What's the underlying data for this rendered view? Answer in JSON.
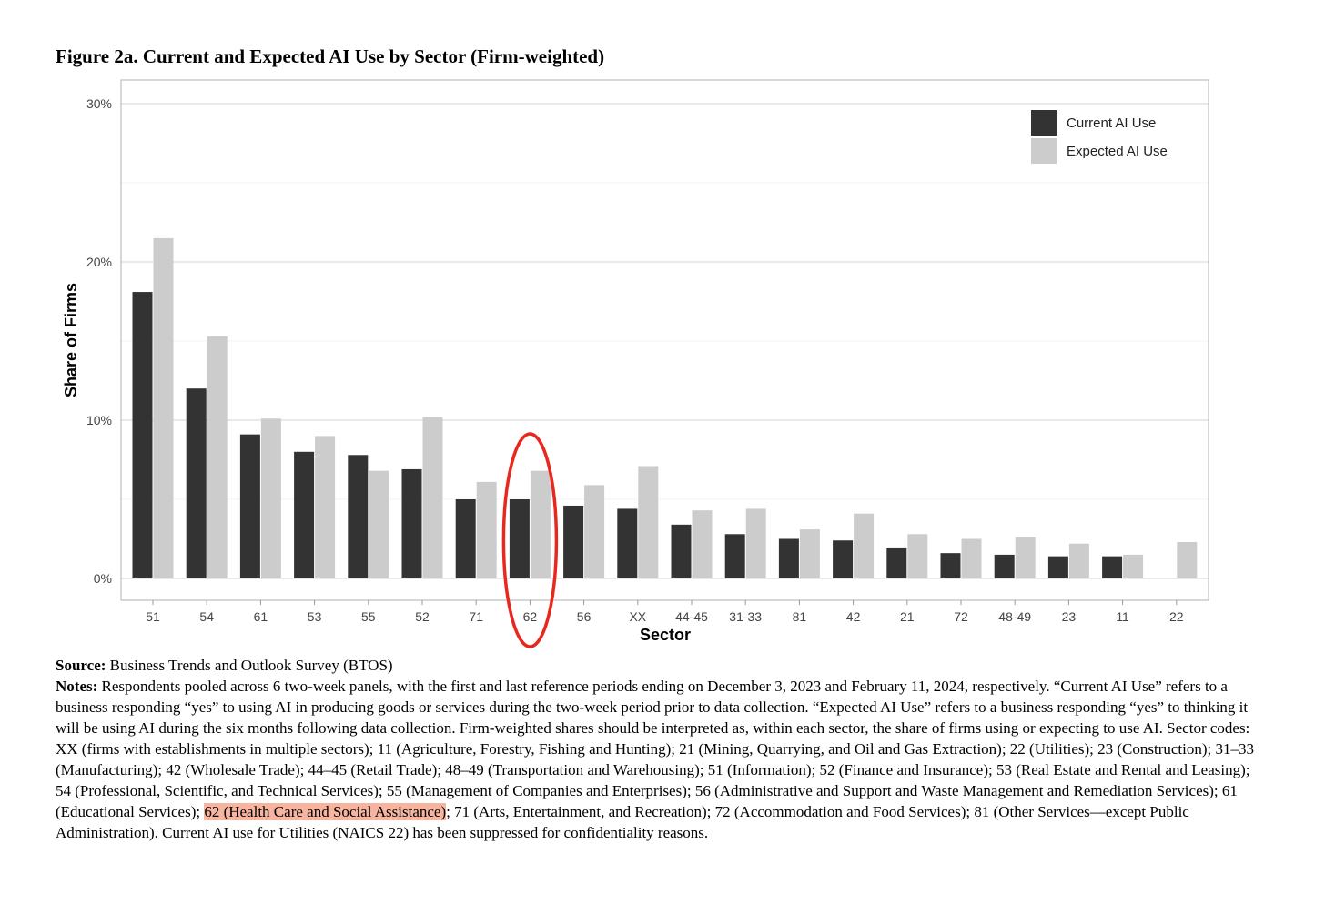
{
  "figure_title": "Figure 2a. Current and Expected AI Use by Sector (Firm-weighted)",
  "chart_data": {
    "type": "bar",
    "title": "Figure 2a. Current and Expected AI Use by Sector (Firm-weighted)",
    "xlabel": "Sector",
    "ylabel": "Share of Firms",
    "ylim": [
      0,
      30
    ],
    "yticks": [
      0,
      10,
      20,
      30
    ],
    "ytick_labels": [
      "0%",
      "10%",
      "20%",
      "30%"
    ],
    "grid": true,
    "legend_position": "top-right",
    "categories": [
      "51",
      "54",
      "61",
      "53",
      "55",
      "52",
      "71",
      "62",
      "56",
      "XX",
      "44-45",
      "31-33",
      "81",
      "42",
      "21",
      "72",
      "48-49",
      "23",
      "11",
      "22"
    ],
    "series": [
      {
        "name": "Current AI Use",
        "color": "#333333",
        "values": [
          18.1,
          12.0,
          9.1,
          8.0,
          7.8,
          6.9,
          5.0,
          5.0,
          4.6,
          4.4,
          3.4,
          2.8,
          2.5,
          2.4,
          1.9,
          1.6,
          1.5,
          1.4,
          1.4,
          null
        ]
      },
      {
        "name": "Expected AI Use",
        "color": "#cccccc",
        "values": [
          21.5,
          15.3,
          10.1,
          9.0,
          6.8,
          10.2,
          6.1,
          6.8,
          5.9,
          7.1,
          4.3,
          4.4,
          3.1,
          4.1,
          2.8,
          2.5,
          2.6,
          2.2,
          1.5,
          2.3
        ]
      }
    ],
    "annotations": [
      {
        "type": "ellipse",
        "color": "#e8281e",
        "category": "62"
      }
    ]
  },
  "notes": {
    "source_label": "Source:",
    "source_text": " Business Trends and Outlook Survey (BTOS)",
    "notes_label": "Notes:",
    "notes_text_1": " Respondents pooled across 6 two-week panels, with the first and last reference periods ending on December 3, 2023 and February 11, 2024, respectively. “Current AI Use” refers to a business responding “yes” to using AI in producing goods or services during the two-week period prior to data collection. “Expected AI Use” refers to a business responding “yes” to thinking it will be using AI during the six months following data collection. Firm-weighted shares should be interpreted as, within each sector, the share of firms using or expecting to use AI. Sector codes: XX (firms with establishments in multiple sectors); 11 (Agriculture, Forestry, Fishing and Hunting); 21 (Mining, Quarrying, and Oil and Gas Extraction); 22 (Utilities); 23 (Construction); 31–33 (Manufacturing); 42 (Wholesale Trade); 44–45 (Retail Trade); 48–49 (Transportation and Warehousing); 51 (Information); 52 (Finance and Insurance); 53 (Real Estate and Rental and Leasing); 54 (Professional, Scientific, and Technical Services); 55 (Management of Companies and Enterprises); 56 (Administrative and Support and Waste Management and Remediation Services); 61 (Educational Services); ",
    "highlight_text": "62 (Health Care and Social Assistance)",
    "notes_text_2": ";  71 (Arts, Entertainment, and Recreation); 72 (Accommodation and Food Services); 81 (Other Services—except Public Administration). Current AI use for Utilities (NAICS 22) has been suppressed for confidentiality reasons.",
    "highlight_color": "#f7b5a0"
  }
}
